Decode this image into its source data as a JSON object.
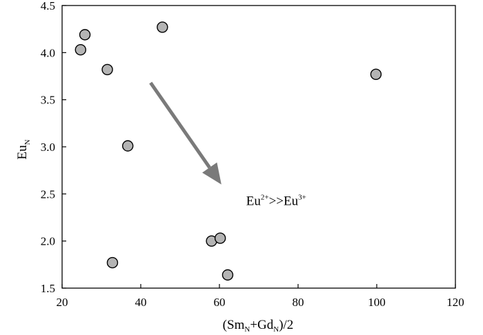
{
  "chart_data": {
    "type": "scatter",
    "title": "",
    "xlabel": {
      "prefix": "(Sm",
      "sub1": "N",
      "mid": "+Gd",
      "sub2": "N",
      "suffix": ")/2"
    },
    "ylabel": {
      "main": "Eu",
      "sub": "N"
    },
    "xlim": [
      20,
      120
    ],
    "ylim": [
      1.5,
      4.5
    ],
    "x_ticks": [
      20,
      40,
      60,
      80,
      100,
      120
    ],
    "y_ticks": [
      1.5,
      2.0,
      2.5,
      3.0,
      3.5,
      4.0,
      4.5
    ],
    "x_tick_labels": [
      "20",
      "40",
      "60",
      "80",
      "100",
      "120"
    ],
    "y_tick_labels": [
      "1.5",
      "2.0",
      "2.5",
      "3.0",
      "3.5",
      "4.0",
      "4.5"
    ],
    "grid": false,
    "legend": "none",
    "marker_fill": "#b4b4b4",
    "marker_edge": "#000000",
    "arrow_color": "#7a7a7a",
    "points": [
      {
        "x": 24.7,
        "y": 4.03
      },
      {
        "x": 25.8,
        "y": 4.19
      },
      {
        "x": 31.5,
        "y": 3.82
      },
      {
        "x": 45.5,
        "y": 4.27
      },
      {
        "x": 36.7,
        "y": 3.01
      },
      {
        "x": 32.8,
        "y": 1.77
      },
      {
        "x": 58.0,
        "y": 2.0
      },
      {
        "x": 60.2,
        "y": 2.03
      },
      {
        "x": 62.1,
        "y": 1.64
      },
      {
        "x": 99.8,
        "y": 3.77
      }
    ],
    "arrow": {
      "from": {
        "x": 42.5,
        "y": 3.68
      },
      "to": {
        "x": 60.5,
        "y": 2.6
      }
    },
    "annotation": {
      "base1": "Eu",
      "sup1": "2+",
      "mid": ">>Eu",
      "sup2": "3+",
      "x": 66.8,
      "y": 2.38
    }
  }
}
